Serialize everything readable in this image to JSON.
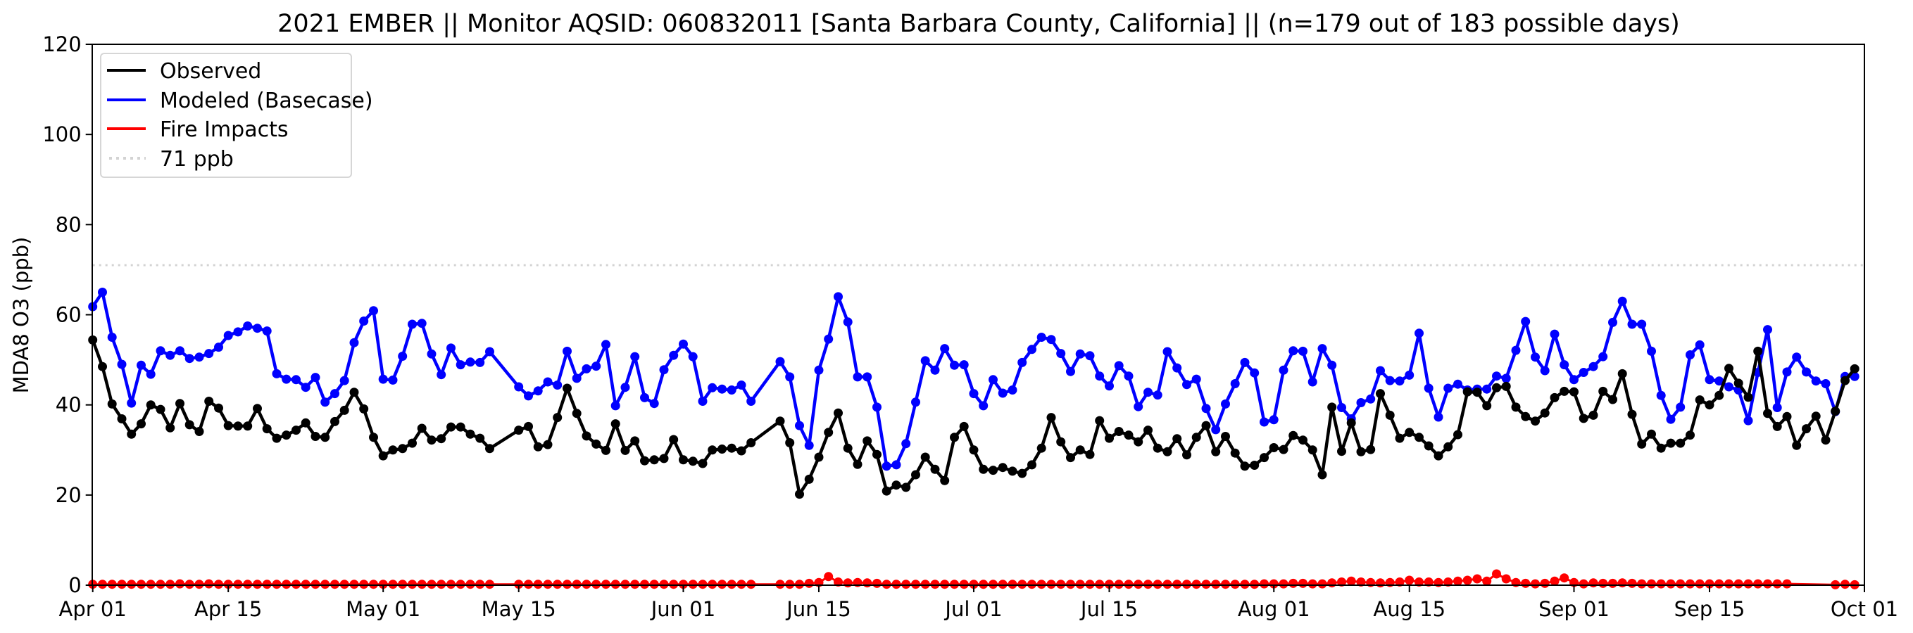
{
  "chart_data": {
    "type": "line",
    "title": "2021 EMBER || Monitor AQSID: 060832011 [Santa Barbara County, California] || (n=179 out of 183 possible days)",
    "xlabel": "",
    "ylabel": "MDA8 O3 (ppb)",
    "x_start": "2021-04-01",
    "x_range_days": [
      0,
      183
    ],
    "ylim": [
      0,
      120
    ],
    "yticks": [
      0,
      20,
      40,
      60,
      80,
      100,
      120
    ],
    "ytick_labels": [
      "0",
      "20",
      "40",
      "60",
      "80",
      "100",
      "120"
    ],
    "xticks_days": [
      0,
      14,
      30,
      44,
      61,
      75,
      91,
      105,
      122,
      136,
      153,
      167,
      183
    ],
    "xtick_labels": [
      "Apr 01",
      "Apr 15",
      "May 01",
      "May 15",
      "Jun 01",
      "Jun 15",
      "Jul 01",
      "Jul 15",
      "Aug 01",
      "Aug 15",
      "Sep 01",
      "Sep 15",
      "Oct 01"
    ],
    "grid": false,
    "legend_position": "top-left",
    "reference_line": {
      "label": "71 ppb",
      "value": 71,
      "color": "#d3d3d3",
      "style": "dotted"
    },
    "series": [
      {
        "name": "Observed",
        "color": "#000000",
        "values": [
          54.4,
          48.5,
          40.2,
          36.9,
          33.5,
          35.8,
          40.0,
          39.0,
          34.9,
          40.3,
          35.6,
          34.1,
          40.8,
          39.3,
          35.4,
          35.3,
          35.3,
          39.2,
          34.7,
          32.6,
          33.3,
          34.4,
          36.0,
          33.0,
          32.8,
          36.3,
          38.8,
          42.8,
          39.1,
          32.8,
          28.7,
          30.0,
          30.3,
          31.5,
          34.8,
          32.2,
          32.5,
          35.1,
          35.1,
          33.5,
          32.6,
          30.3,
          null,
          null,
          34.4,
          35.2,
          30.7,
          31.2,
          37.2,
          43.7,
          38.1,
          33.1,
          31.3,
          29.9,
          35.8,
          29.9,
          32.0,
          27.6,
          27.8,
          28.1,
          32.3,
          27.8,
          27.5,
          27.0,
          30.0,
          30.2,
          30.4,
          29.8,
          31.6,
          null,
          null,
          36.4,
          31.6,
          20.2,
          23.5,
          28.4,
          33.9,
          38.2,
          30.4,
          26.8,
          32.0,
          29.0,
          20.9,
          22.2,
          21.7,
          24.5,
          28.4,
          25.7,
          23.2,
          32.8,
          35.2,
          30.0,
          25.7,
          25.5,
          26.1,
          25.3,
          24.8,
          26.7,
          30.4,
          37.2,
          31.8,
          28.3,
          30.0,
          29.0,
          36.5,
          32.6,
          34.1,
          33.3,
          31.8,
          34.4,
          30.4,
          29.6,
          32.5,
          28.9,
          32.8,
          35.4,
          29.6,
          33.0,
          29.3,
          26.4,
          26.6,
          28.3,
          30.5,
          30.1,
          33.2,
          32.2,
          30.0,
          24.5,
          39.5,
          29.7,
          36.0,
          29.6,
          30.1,
          42.5,
          37.7,
          32.6,
          33.9,
          32.8,
          30.9,
          28.7,
          30.7,
          33.4,
          42.9,
          42.8,
          39.8,
          43.8,
          44.1,
          39.5,
          37.4,
          36.4,
          38.2,
          41.6,
          43.0,
          42.9,
          37.0,
          37.7,
          43.0,
          41.2,
          46.9,
          37.9,
          31.3,
          33.5,
          30.4,
          31.5,
          31.5,
          33.3,
          41.1,
          40.0,
          42.1,
          48.1,
          44.8,
          41.7,
          51.9,
          38.1,
          35.2,
          37.4,
          31.0,
          34.7,
          37.5,
          32.2,
          38.6,
          45.4,
          48.0
        ]
      },
      {
        "name": "Modeled (Basecase)",
        "color": "#0000ff",
        "values": [
          61.8,
          65.0,
          55.0,
          49.0,
          40.4,
          48.8,
          46.8,
          52.0,
          51.0,
          52.0,
          50.3,
          50.6,
          51.4,
          52.8,
          55.4,
          56.2,
          57.5,
          57.0,
          56.4,
          46.9,
          45.7,
          45.6,
          43.9,
          46.1,
          40.6,
          42.5,
          45.4,
          53.8,
          58.6,
          60.9,
          45.7,
          45.5,
          50.8,
          57.9,
          58.1,
          51.3,
          46.7,
          52.6,
          48.9,
          49.5,
          49.4,
          51.8,
          null,
          null,
          44.0,
          42.0,
          43.1,
          45.1,
          44.4,
          51.9,
          45.9,
          48.0,
          48.6,
          53.4,
          39.8,
          43.9,
          50.7,
          41.6,
          40.3,
          47.8,
          51.0,
          53.5,
          50.7,
          40.8,
          43.8,
          43.5,
          43.3,
          44.4,
          40.8,
          null,
          null,
          49.6,
          46.2,
          35.4,
          31.0,
          47.7,
          54.6,
          64.0,
          58.4,
          46.2,
          46.2,
          39.5,
          26.4,
          26.7,
          31.4,
          40.6,
          49.8,
          47.7,
          52.5,
          48.8,
          48.9,
          42.5,
          39.8,
          45.6,
          42.6,
          43.3,
          49.4,
          52.3,
          55.0,
          54.5,
          51.4,
          47.4,
          51.3,
          50.9,
          46.4,
          44.2,
          48.7,
          46.4,
          39.6,
          42.8,
          42.2,
          51.8,
          48.2,
          44.5,
          45.7,
          39.2,
          34.5,
          40.2,
          44.7,
          49.4,
          47.1,
          36.2,
          36.7,
          47.7,
          52.0,
          51.9,
          45.1,
          52.5,
          48.8,
          39.4,
          36.9,
          40.5,
          41.3,
          47.6,
          45.4,
          45.3,
          46.6,
          55.9,
          43.7,
          37.3,
          43.7,
          44.6,
          43.3,
          43.5,
          43.5,
          46.4,
          45.9,
          52.1,
          58.5,
          50.6,
          47.6,
          55.7,
          48.9,
          45.6,
          47.2,
          48.5,
          50.7,
          58.3,
          63.0,
          57.9,
          57.9,
          51.9,
          42.1,
          36.8,
          39.5,
          51.1,
          53.3,
          45.6,
          45.3,
          44.0,
          43.3,
          36.5,
          47.2,
          56.7,
          39.4,
          47.3,
          50.6,
          47.3,
          45.3,
          44.7,
          38.5,
          46.3,
          46.3
        ]
      },
      {
        "name": "Fire Impacts",
        "color": "#ff0000",
        "values": [
          0.2,
          0.2,
          0.2,
          0.2,
          0.2,
          0.2,
          0.2,
          0.2,
          0.2,
          0.3,
          0.2,
          0.2,
          0.3,
          0.2,
          0.2,
          0.2,
          0.2,
          0.2,
          0.2,
          0.2,
          0.2,
          0.2,
          0.2,
          0.2,
          0.2,
          0.2,
          0.2,
          0.2,
          0.2,
          0.2,
          0.2,
          0.2,
          0.2,
          0.2,
          0.2,
          0.2,
          0.2,
          0.2,
          0.2,
          0.2,
          0.2,
          0.2,
          null,
          null,
          0.2,
          0.2,
          0.2,
          0.2,
          0.2,
          0.2,
          0.2,
          0.2,
          0.2,
          0.2,
          0.2,
          0.2,
          0.2,
          0.2,
          0.2,
          0.2,
          0.2,
          0.2,
          0.2,
          0.2,
          0.2,
          0.2,
          0.2,
          0.2,
          0.2,
          null,
          null,
          0.2,
          0.2,
          0.2,
          0.4,
          0.6,
          1.9,
          0.7,
          0.5,
          0.6,
          0.5,
          0.4,
          0.2,
          0.2,
          0.2,
          0.2,
          0.2,
          0.2,
          0.2,
          0.2,
          0.2,
          0.2,
          0.2,
          0.2,
          0.2,
          0.2,
          0.2,
          0.2,
          0.2,
          0.2,
          0.2,
          0.2,
          0.2,
          0.2,
          0.2,
          0.2,
          0.2,
          0.2,
          0.2,
          0.2,
          0.2,
          0.2,
          0.2,
          0.2,
          0.2,
          0.2,
          0.2,
          0.2,
          0.2,
          0.2,
          0.2,
          0.3,
          0.3,
          0.3,
          0.4,
          0.4,
          0.3,
          0.3,
          0.5,
          0.7,
          0.9,
          0.7,
          0.6,
          0.5,
          0.6,
          0.7,
          1.1,
          0.7,
          0.7,
          0.6,
          0.7,
          0.9,
          1.1,
          1.4,
          0.9,
          2.5,
          1.4,
          0.6,
          0.4,
          0.3,
          0.4,
          0.9,
          1.6,
          0.6,
          0.3,
          0.5,
          0.4,
          0.4,
          0.5,
          0.4,
          0.3,
          0.3,
          0.3,
          0.3,
          0.3,
          0.3,
          0.3,
          0.3,
          0.3,
          0.3,
          0.3,
          0.3,
          0.3,
          0.3,
          0.3,
          0.3,
          null,
          null,
          null,
          null,
          0.1,
          0.2,
          0.1
        ]
      }
    ]
  }
}
